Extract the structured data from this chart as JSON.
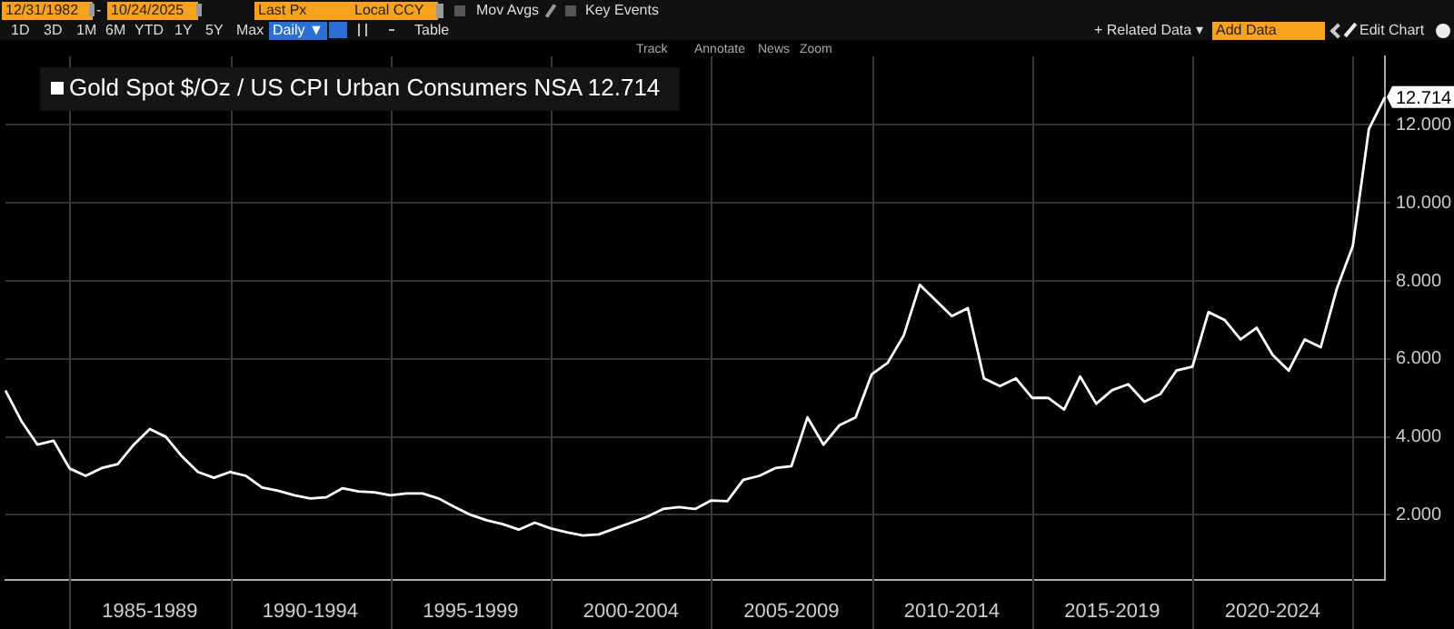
{
  "chart_data": {
    "type": "line",
    "categories": [
      null,
      null,
      null,
      null,
      null,
      null,
      null,
      null,
      null,
      "1985-1989",
      null,
      null,
      null,
      null,
      null,
      null,
      null,
      null,
      null,
      "1990-1994",
      null,
      null,
      null,
      null,
      null,
      null,
      null,
      null,
      null,
      "1995-1999",
      null,
      null,
      null,
      null,
      null,
      null,
      null,
      null,
      null,
      "2000-2004",
      null,
      null,
      null,
      null,
      null,
      null,
      null,
      null,
      null,
      "2005-2009",
      null,
      null,
      null,
      null,
      null,
      null,
      null,
      null,
      null,
      "2010-2014",
      null,
      null,
      null,
      null,
      null,
      null,
      null,
      null,
      null,
      "2015-2019",
      null,
      null,
      null,
      null,
      null,
      null,
      null,
      null,
      null,
      "2020-2024",
      null,
      null,
      null,
      null,
      null,
      null,
      null
    ],
    "series": [
      {
        "name": "Gold Spot $/Oz / US CPI Urban Consumers NSA 12.714",
        "color": "#ffffff",
        "values": [
          5.19,
          4.4,
          3.8,
          3.9,
          3.19,
          3.0,
          3.2,
          3.3,
          3.8,
          4.2,
          4.0,
          3.5,
          3.1,
          2.95,
          3.1,
          3.0,
          2.7,
          2.62,
          2.5,
          2.42,
          2.45,
          2.68,
          2.6,
          2.58,
          2.5,
          2.55,
          2.55,
          2.42,
          2.2,
          2.0,
          1.86,
          1.76,
          1.62,
          1.8,
          1.65,
          1.55,
          1.47,
          1.5,
          1.65,
          1.8,
          1.95,
          2.15,
          2.2,
          2.15,
          2.37,
          2.35,
          2.9,
          3.0,
          3.2,
          3.25,
          4.5,
          3.8,
          4.3,
          4.5,
          5.6,
          5.9,
          6.6,
          7.9,
          7.5,
          7.1,
          7.3,
          5.5,
          5.3,
          5.5,
          5.0,
          5.0,
          4.7,
          5.55,
          4.85,
          5.2,
          5.35,
          4.9,
          5.1,
          5.7,
          5.8,
          7.2,
          7.0,
          6.5,
          6.8,
          6.1,
          5.7,
          6.5,
          6.3,
          7.8,
          8.9,
          11.9,
          12.714
        ]
      }
    ],
    "ylim": [
      0.34,
      13.76
    ],
    "yticks": [
      {
        "value": 2,
        "label": "2.000"
      },
      {
        "value": 4,
        "label": "4.000"
      },
      {
        "value": 6,
        "label": "6.000"
      },
      {
        "value": 8,
        "label": "8.000"
      },
      {
        "value": 10,
        "label": "10.000"
      },
      {
        "value": 12,
        "label": "12.000"
      }
    ],
    "grid": true,
    "legend": "top left",
    "marker": "none",
    "line_style": "solid",
    "annotations": [
      "12/31/1982",
      "-",
      "10/24/2025",
      "Last Px",
      "Local CCY",
      "Mov Avgs",
      "Key Events",
      "1D",
      "3D",
      "1M",
      "6M",
      "YTD",
      "1Y",
      "5Y",
      "Max",
      "Daily ▼",
      "Table",
      "+ Related Data ▾",
      "Add Data",
      "Edit Chart",
      "Track",
      "Annotate",
      "News",
      "Zoom",
      {
        "text": "12.714",
        "y": 12.714
      }
    ]
  }
}
